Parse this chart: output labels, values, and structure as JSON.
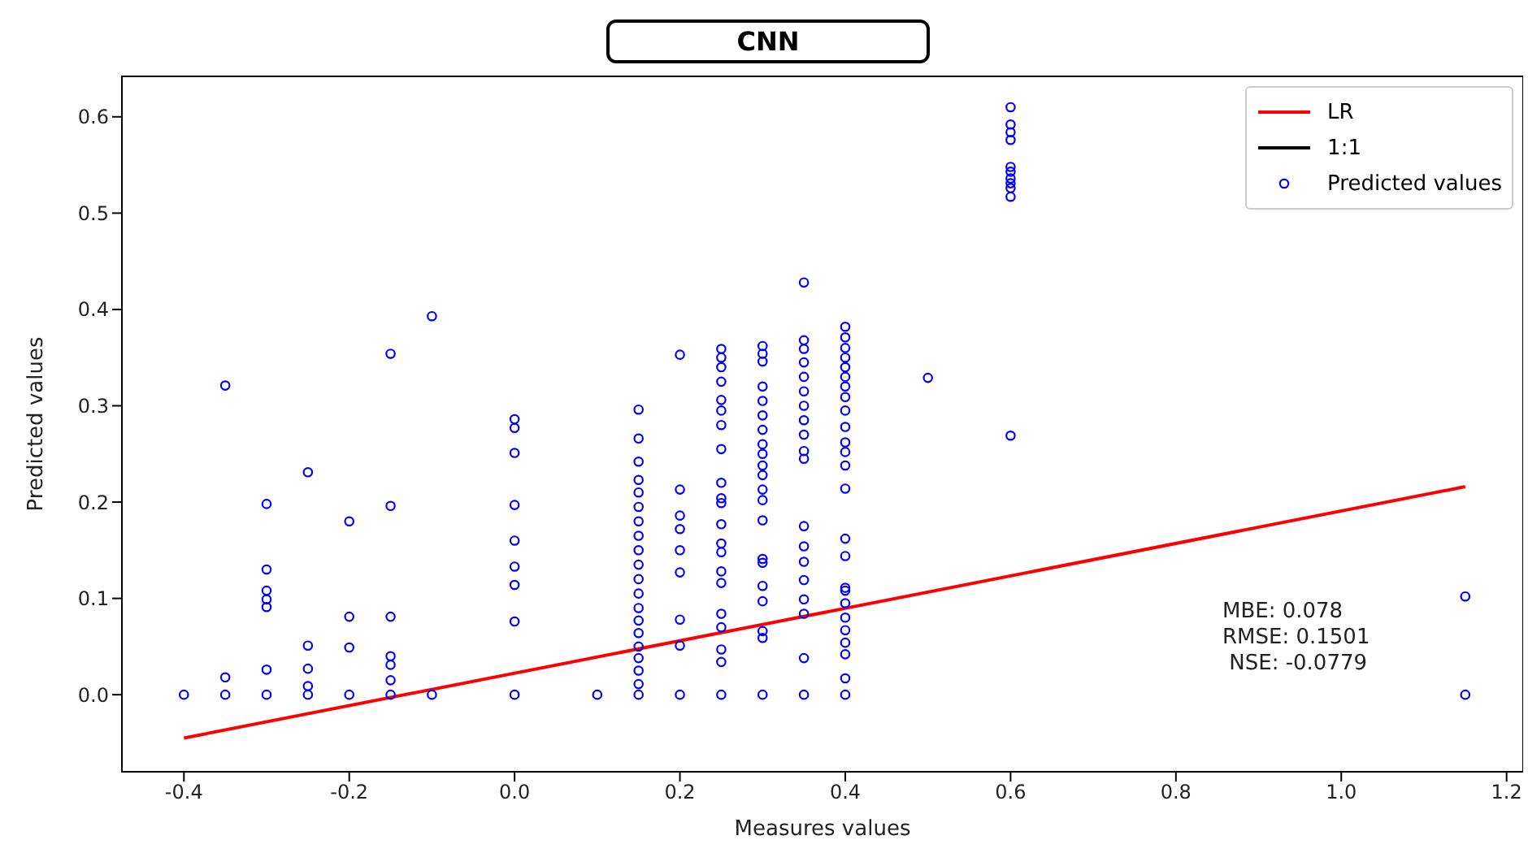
{
  "chart_data": {
    "type": "scatter",
    "title": "CNN",
    "xlabel": "Measures values",
    "ylabel": "Predicted values",
    "xlim": [
      -0.475,
      1.22
    ],
    "ylim": [
      -0.08,
      0.642
    ],
    "xticks": [
      -0.4,
      -0.2,
      {
        "value": 0,
        "label": "0.0"
      },
      0.2,
      0.4,
      0.6,
      0.8,
      {
        "value": 1,
        "label": "1.0"
      },
      1.2
    ],
    "yticks": [
      {
        "value": 0,
        "label": "0.0"
      },
      0.1,
      0.2,
      0.3,
      0.4,
      0.5,
      0.6
    ],
    "grid": false,
    "legend": "top right",
    "annotations": [
      "MBE: 0.078",
      "RMSE: 0.1501",
      " NSE: -0.0779"
    ],
    "series": [
      {
        "name": "LR",
        "type": "line",
        "color": "#ff0000",
        "line_style": "solid",
        "marker": "none",
        "x": [
          -0.4,
          1.15
        ],
        "values": [
          -0.045,
          0.216
        ]
      },
      {
        "name": "1:1",
        "type": "line",
        "color": "#000000",
        "line_style": "solid",
        "marker": "none"
      },
      {
        "name": "Predicted values",
        "color": "#0000ff",
        "marker": "circle",
        "x": [
          -0.4,
          -0.35,
          -0.35,
          -0.35,
          -0.3,
          -0.3,
          -0.3,
          -0.3,
          -0.3,
          -0.3,
          -0.3,
          -0.25,
          -0.25,
          -0.25,
          -0.25,
          -0.25,
          -0.2,
          -0.2,
          -0.2,
          -0.2,
          -0.15,
          -0.15,
          -0.15,
          -0.15,
          -0.15,
          -0.15,
          -0.15,
          -0.1,
          -0.1,
          0,
          0,
          0,
          0,
          0,
          0,
          0,
          0,
          0,
          0.1,
          0.15,
          0.15,
          0.15,
          0.15,
          0.15,
          0.15,
          0.15,
          0.15,
          0.15,
          0.15,
          0.15,
          0.15,
          0.15,
          0.15,
          0.15,
          0.15,
          0.15,
          0.15,
          0.15,
          0.15,
          0.2,
          0.2,
          0.2,
          0.2,
          0.2,
          0.2,
          0.2,
          0.2,
          0.2,
          0.25,
          0.25,
          0.25,
          0.25,
          0.25,
          0.25,
          0.25,
          0.25,
          0.25,
          0.25,
          0.25,
          0.25,
          0.25,
          0.25,
          0.25,
          0.25,
          0.25,
          0.25,
          0.25,
          0.25,
          0.25,
          0.3,
          0.3,
          0.3,
          0.3,
          0.3,
          0.3,
          0.3,
          0.3,
          0.3,
          0.3,
          0.3,
          0.3,
          0.3,
          0.3,
          0.3,
          0.3,
          0.3,
          0.3,
          0.3,
          0.3,
          0.3,
          0.35,
          0.35,
          0.35,
          0.35,
          0.35,
          0.35,
          0.35,
          0.35,
          0.35,
          0.35,
          0.35,
          0.35,
          0.35,
          0.35,
          0.35,
          0.35,
          0.35,
          0.35,
          0.35,
          0.4,
          0.4,
          0.4,
          0.4,
          0.4,
          0.4,
          0.4,
          0.4,
          0.4,
          0.4,
          0.4,
          0.4,
          0.4,
          0.4,
          0.4,
          0.4,
          0.4,
          0.4,
          0.4,
          0.4,
          0.4,
          0.4,
          0.4,
          0.4,
          0.4,
          0.5,
          0.6,
          0.6,
          0.6,
          0.6,
          0.6,
          0.6,
          0.6,
          0.6,
          0.6,
          0.6,
          0.6,
          1.15,
          1.15
        ],
        "values": [
          0,
          0.321,
          0.018,
          0,
          0.198,
          0.13,
          0.108,
          0.099,
          0.091,
          0.026,
          0,
          0.231,
          0.051,
          0.027,
          0.009,
          0,
          0.18,
          0.081,
          0.049,
          0,
          0.354,
          0.196,
          0.081,
          0.04,
          0.031,
          0.015,
          0,
          0.393,
          0,
          0.286,
          0.277,
          0.251,
          0.197,
          0.16,
          0.133,
          0.114,
          0.076,
          0,
          0,
          0.296,
          0.266,
          0.242,
          0.223,
          0.21,
          0.195,
          0.18,
          0.165,
          0.15,
          0.135,
          0.12,
          0.105,
          0.09,
          0.077,
          0.064,
          0.05,
          0.038,
          0.025,
          0.011,
          0,
          0.353,
          0.213,
          0.186,
          0.172,
          0.15,
          0.127,
          0.078,
          0.051,
          0,
          0.359,
          0.35,
          0.34,
          0.325,
          0.306,
          0.295,
          0.28,
          0.255,
          0.22,
          0.204,
          0.199,
          0.177,
          0.157,
          0.148,
          0.128,
          0.116,
          0.084,
          0.07,
          0.047,
          0.034,
          0,
          0.362,
          0.354,
          0.346,
          0.32,
          0.305,
          0.29,
          0.275,
          0.26,
          0.25,
          0.238,
          0.228,
          0.213,
          0.202,
          0.181,
          0.141,
          0.137,
          0.113,
          0.097,
          0.066,
          0.059,
          0,
          0.428,
          0.368,
          0.359,
          0.345,
          0.33,
          0.315,
          0.3,
          0.285,
          0.27,
          0.253,
          0.245,
          0.175,
          0.154,
          0.138,
          0.119,
          0.099,
          0.084,
          0.038,
          0,
          0.382,
          0.371,
          0.36,
          0.35,
          0.34,
          0.33,
          0.32,
          0.309,
          0.295,
          0.278,
          0.262,
          0.252,
          0.238,
          0.214,
          0.162,
          0.144,
          0.111,
          0.108,
          0.095,
          0.08,
          0.067,
          0.054,
          0.042,
          0.017,
          0,
          0.329,
          0.61,
          0.592,
          0.584,
          0.576,
          0.548,
          0.543,
          0.536,
          0.531,
          0.526,
          0.517,
          0.269,
          0.102,
          0
        ]
      }
    ]
  }
}
